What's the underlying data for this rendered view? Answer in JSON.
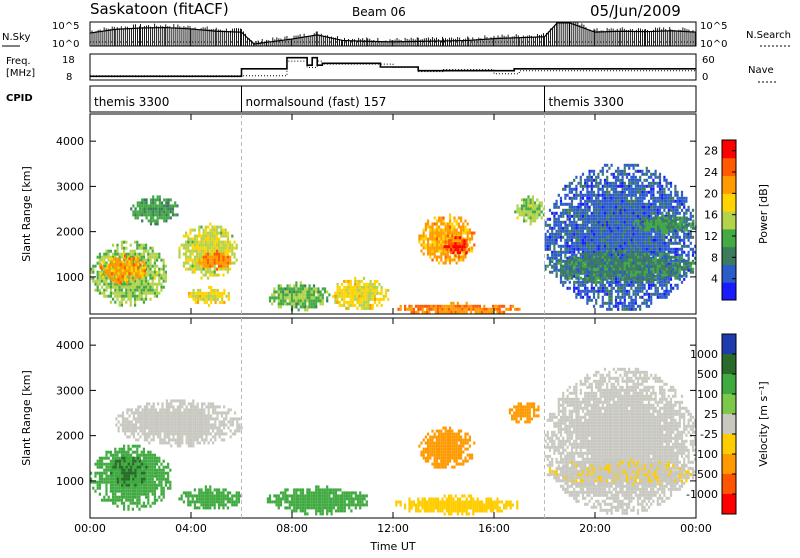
{
  "header": {
    "station": "Saskatoon (fitACF)",
    "beam": "Beam 06",
    "date": "05/Jun/2009"
  },
  "colors": {
    "background": "#ffffff",
    "power_scale": [
      "#1a1aff",
      "#2c5cc8",
      "#3c7c5c",
      "#44aa44",
      "#b4d24a",
      "#ffd400",
      "#ff9a00",
      "#ff5a00",
      "#ff0000"
    ],
    "velocity_scale": [
      "#1f3bb0",
      "#2a6a2a",
      "#3faa3f",
      "#7cc84a",
      "#c8c8c0",
      "#ffcc00",
      "#ff9900",
      "#ff5500",
      "#ff0000"
    ]
  },
  "chart_data": [
    {
      "type": "line",
      "name": "nsky-nsearch-panel",
      "left_label": "N.Sky",
      "right_label": "N.Search",
      "left_ticks": [
        "10^5",
        "10^0"
      ],
      "right_ticks": [
        "10^5",
        "10^0"
      ],
      "x": [
        0,
        1,
        2,
        3,
        4,
        5,
        6,
        6.5,
        7,
        8,
        9,
        10,
        11,
        12,
        13,
        14,
        15,
        16,
        17,
        18,
        18.5,
        19,
        20,
        21,
        22,
        23,
        24
      ],
      "y_log10": [
        2.8,
        3.6,
        3.9,
        4.0,
        3.7,
        3.2,
        3.0,
        0.4,
        0.8,
        1.5,
        2.4,
        1.2,
        1.0,
        0.9,
        1.0,
        1.1,
        1.2,
        1.6,
        1.8,
        2.0,
        5.0,
        5.0,
        3.0,
        3.2,
        3.1,
        3.3,
        3.0
      ]
    },
    {
      "type": "line",
      "name": "freq-nave-panel",
      "left_label": "Freq.",
      "left_unit": "[MHz]",
      "right_label": "Nave",
      "left_ticks": [
        "18",
        "8"
      ],
      "right_ticks": [
        "60",
        "0"
      ],
      "freq_step": {
        "x": [
          0,
          6,
          7.8,
          8.6,
          8.8,
          9,
          9.2,
          11.5,
          13,
          16,
          16.8,
          24
        ],
        "y": [
          8,
          12,
          18,
          14,
          18,
          14,
          15,
          13,
          11,
          11,
          12,
          12
        ]
      },
      "nave_step": {
        "x": [
          0,
          6,
          7.8,
          8.6,
          9,
          9.2,
          12,
          13,
          14,
          16,
          17,
          24
        ],
        "y": [
          10,
          10,
          45,
          30,
          45,
          38,
          30,
          20,
          25,
          15,
          22,
          22
        ]
      }
    },
    {
      "type": "heatmap",
      "name": "power-panel",
      "cpid_label": "CPID",
      "cpid_segments": [
        {
          "label": "themis 3300",
          "start": 0,
          "end": 6
        },
        {
          "label": "normalsound (fast) 157",
          "start": 6,
          "end": 18
        },
        {
          "label": "themis 3300",
          "start": 18,
          "end": 24
        }
      ],
      "xlabel": "Time UT",
      "ylabel": "Slant Range [km]",
      "x_ticks": [
        "00:00",
        "04:00",
        "08:00",
        "12:00",
        "16:00",
        "20:00",
        "00:00"
      ],
      "y_ticks": [
        1000,
        2000,
        3000,
        4000
      ],
      "ylim": [
        180,
        4600
      ],
      "xlim": [
        0,
        24
      ],
      "colorbar_label": "Power [dB]",
      "colorbar_ticks": [
        4,
        8,
        12,
        16,
        20,
        24,
        28
      ],
      "colorbar_range": [
        0,
        30
      ],
      "blobs": [
        {
          "t0": 0,
          "t1": 3.0,
          "r0": 400,
          "r1": 1800,
          "v": 14
        },
        {
          "t0": 0.3,
          "t1": 2.2,
          "r0": 900,
          "r1": 1500,
          "v": 22
        },
        {
          "t0": 3.5,
          "t1": 5.8,
          "r0": 1000,
          "r1": 2200,
          "v": 16
        },
        {
          "t0": 4.2,
          "t1": 5.6,
          "r0": 1200,
          "r1": 1600,
          "v": 24
        },
        {
          "t0": 1.5,
          "t1": 3.5,
          "r0": 2200,
          "r1": 2800,
          "v": 10
        },
        {
          "t0": 3.8,
          "t1": 5.5,
          "r0": 400,
          "r1": 800,
          "v": 18
        },
        {
          "t0": 7.0,
          "t1": 9.5,
          "r0": 300,
          "r1": 900,
          "v": 12
        },
        {
          "t0": 9.5,
          "t1": 11.8,
          "r0": 300,
          "r1": 1000,
          "v": 18
        },
        {
          "t0": 12.0,
          "t1": 17.0,
          "r0": 200,
          "r1": 450,
          "v": 24
        },
        {
          "t0": 13.0,
          "t1": 15.2,
          "r0": 1300,
          "r1": 2400,
          "v": 22
        },
        {
          "t0": 14.0,
          "t1": 15.0,
          "r0": 1500,
          "r1": 1900,
          "v": 28
        },
        {
          "t0": 16.8,
          "t1": 18.0,
          "r0": 2200,
          "r1": 2800,
          "v": 14
        },
        {
          "t0": 18.0,
          "t1": 24,
          "r0": 300,
          "r1": 3500,
          "v": 4
        },
        {
          "t0": 18.0,
          "t1": 24,
          "r0": 900,
          "r1": 1600,
          "v": 8
        },
        {
          "t0": 21.5,
          "t1": 24,
          "r0": 2000,
          "r1": 2400,
          "v": 10
        }
      ]
    },
    {
      "type": "heatmap",
      "name": "velocity-panel",
      "xlabel": "Time UT",
      "ylabel": "Slant Range [km]",
      "x_ticks": [
        "00:00",
        "04:00",
        "08:00",
        "12:00",
        "16:00",
        "20:00",
        "00:00"
      ],
      "y_ticks": [
        1000,
        2000,
        3000,
        4000
      ],
      "ylim": [
        180,
        4600
      ],
      "xlim": [
        0,
        24
      ],
      "colorbar_label": "Velocity [m s⁻¹]",
      "colorbar_ticks": [
        "1000",
        "500",
        "100",
        "25",
        "-25",
        "-100",
        "-500",
        "-1000"
      ],
      "blobs": [
        {
          "t0": 0,
          "t1": 3.2,
          "r0": 400,
          "r1": 1800,
          "v": 100
        },
        {
          "t0": 0.8,
          "t1": 2.2,
          "r0": 900,
          "r1": 1600,
          "v": 300
        },
        {
          "t0": 1.0,
          "t1": 6.0,
          "r0": 1800,
          "r1": 2800,
          "v": 0
        },
        {
          "t0": 3.5,
          "t1": 6.0,
          "r0": 400,
          "r1": 900,
          "v": 150
        },
        {
          "t0": 7.0,
          "t1": 11.0,
          "r0": 300,
          "r1": 900,
          "v": 120
        },
        {
          "t0": 12.0,
          "t1": 17.0,
          "r0": 300,
          "r1": 700,
          "v": -60
        },
        {
          "t0": 13.0,
          "t1": 15.2,
          "r0": 1300,
          "r1": 2200,
          "v": -250
        },
        {
          "t0": 16.5,
          "t1": 17.8,
          "r0": 2300,
          "r1": 2800,
          "v": -250
        },
        {
          "t0": 18.0,
          "t1": 24,
          "r0": 300,
          "r1": 3500,
          "v": 0
        },
        {
          "t0": 18.0,
          "t1": 24,
          "r0": 900,
          "r1": 1500,
          "v": -20
        }
      ]
    }
  ]
}
